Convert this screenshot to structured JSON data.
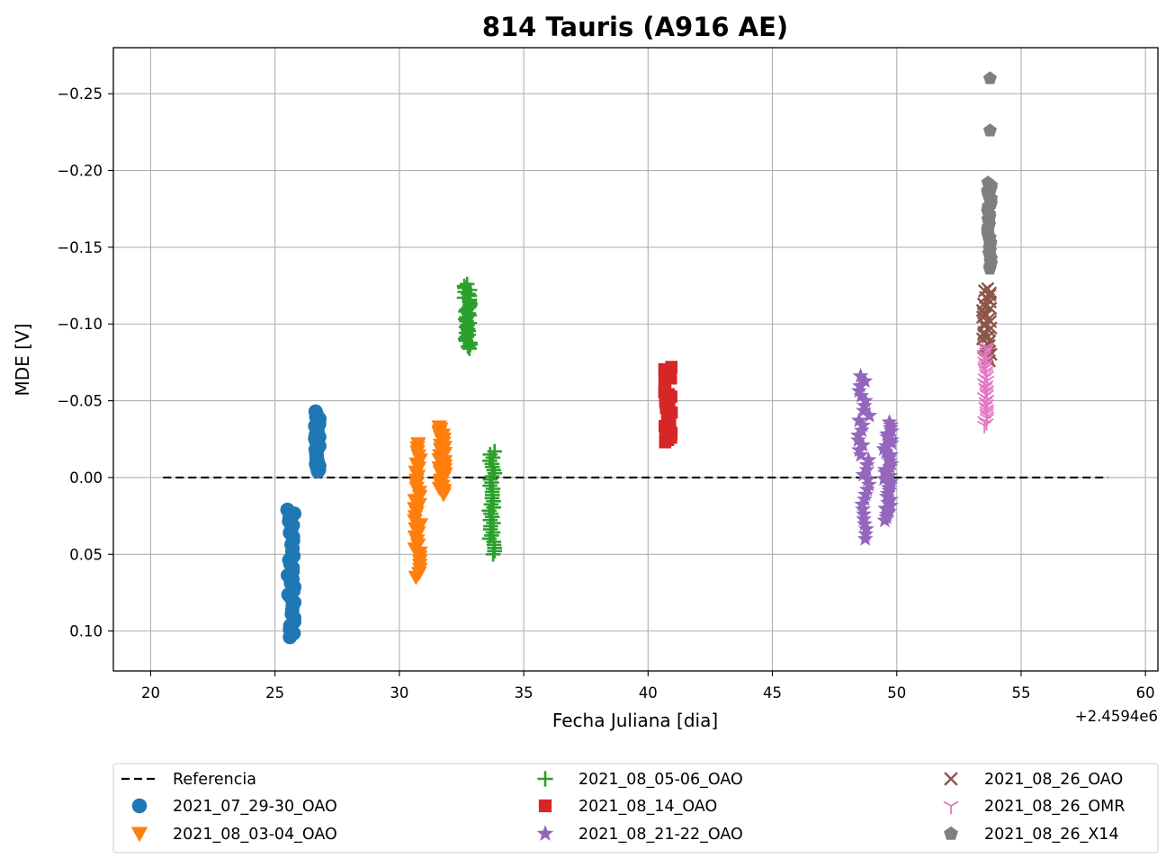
{
  "chart_data": {
    "type": "scatter",
    "title": "814 Tauris (A916 AE)",
    "xlabel": "Fecha Juliana [dia]",
    "ylabel": "MDE [V]",
    "x_offset_label": "+2.4594e6",
    "xlim": [
      18.5,
      60.5
    ],
    "ylim": [
      0.126,
      -0.28
    ],
    "y_inverted": true,
    "x_ticks": [
      20,
      25,
      30,
      35,
      40,
      45,
      50,
      55,
      60
    ],
    "x_tick_labels": [
      "20",
      "25",
      "30",
      "35",
      "40",
      "45",
      "50",
      "55",
      "60"
    ],
    "y_ticks": [
      -0.25,
      -0.2,
      -0.15,
      -0.1,
      -0.05,
      0.0,
      0.05,
      0.1
    ],
    "y_tick_labels": [
      "−0.25",
      "−0.20",
      "−0.15",
      "−0.10",
      "−0.05",
      "0.00",
      "0.05",
      "0.10"
    ],
    "grid": true,
    "legend_position": "below-plot",
    "legend_columns": 3,
    "reference": {
      "name": "Referencia",
      "x": [
        20.5,
        58.5
      ],
      "y": [
        0.0,
        0.0
      ],
      "color": "#000000",
      "style": "dashed"
    },
    "series": [
      {
        "name": "2021_07_29-30_OAO",
        "marker": "circle",
        "color": "#1f77b4",
        "clusters": [
          {
            "x_min": 25.5,
            "x_max": 25.8,
            "y_min": 0.021,
            "y_max": 0.104
          },
          {
            "x_min": 26.6,
            "x_max": 26.8,
            "y_min": -0.043,
            "y_max": -0.004
          }
        ]
      },
      {
        "name": "2021_08_03-04_OAO",
        "marker": "triangle-down",
        "color": "#ff7f0e",
        "clusters": [
          {
            "x_min": 30.6,
            "x_max": 30.85,
            "y_min": -0.022,
            "y_max": 0.065
          },
          {
            "x_min": 31.6,
            "x_max": 31.85,
            "y_min": -0.033,
            "y_max": 0.011
          }
        ]
      },
      {
        "name": "2021_08_05-06_OAO",
        "marker": "plus",
        "color": "#2ca02c",
        "clusters": [
          {
            "x_min": 32.6,
            "x_max": 32.85,
            "y_min": -0.126,
            "y_max": -0.084
          },
          {
            "x_min": 33.6,
            "x_max": 33.85,
            "y_min": -0.017,
            "y_max": 0.05
          }
        ]
      },
      {
        "name": "2021_08_14_OAO",
        "marker": "square",
        "color": "#d62728",
        "clusters": [
          {
            "x_min": 40.65,
            "x_max": 40.95,
            "y_min": -0.072,
            "y_max": -0.023
          }
        ]
      },
      {
        "name": "2021_08_21-22_OAO",
        "marker": "star",
        "color": "#9467bd",
        "clusters": [
          {
            "x_min": 48.45,
            "x_max": 48.9,
            "y_min": -0.066,
            "y_max": 0.04
          },
          {
            "x_min": 49.45,
            "x_max": 49.8,
            "y_min": -0.036,
            "y_max": 0.028
          }
        ]
      },
      {
        "name": "2021_08_26_OAO",
        "marker": "x",
        "color": "#8c564b",
        "clusters": [
          {
            "x_min": 53.45,
            "x_max": 53.8,
            "y_min": -0.123,
            "y_max": -0.076
          }
        ]
      },
      {
        "name": "2021_08_26_OMR",
        "marker": "tri-down",
        "color": "#e377c2",
        "clusters": [
          {
            "x_min": 53.5,
            "x_max": 53.65,
            "y_min": -0.085,
            "y_max": -0.034
          }
        ]
      },
      {
        "name": "2021_08_26_X14",
        "marker": "pentagon",
        "color": "#7f7f7f",
        "points": [
          [
            53.75,
            -0.26
          ],
          [
            53.75,
            -0.226
          ]
        ],
        "clusters": [
          {
            "x_min": 53.65,
            "x_max": 53.8,
            "y_min": -0.192,
            "y_max": -0.136
          }
        ]
      }
    ]
  }
}
